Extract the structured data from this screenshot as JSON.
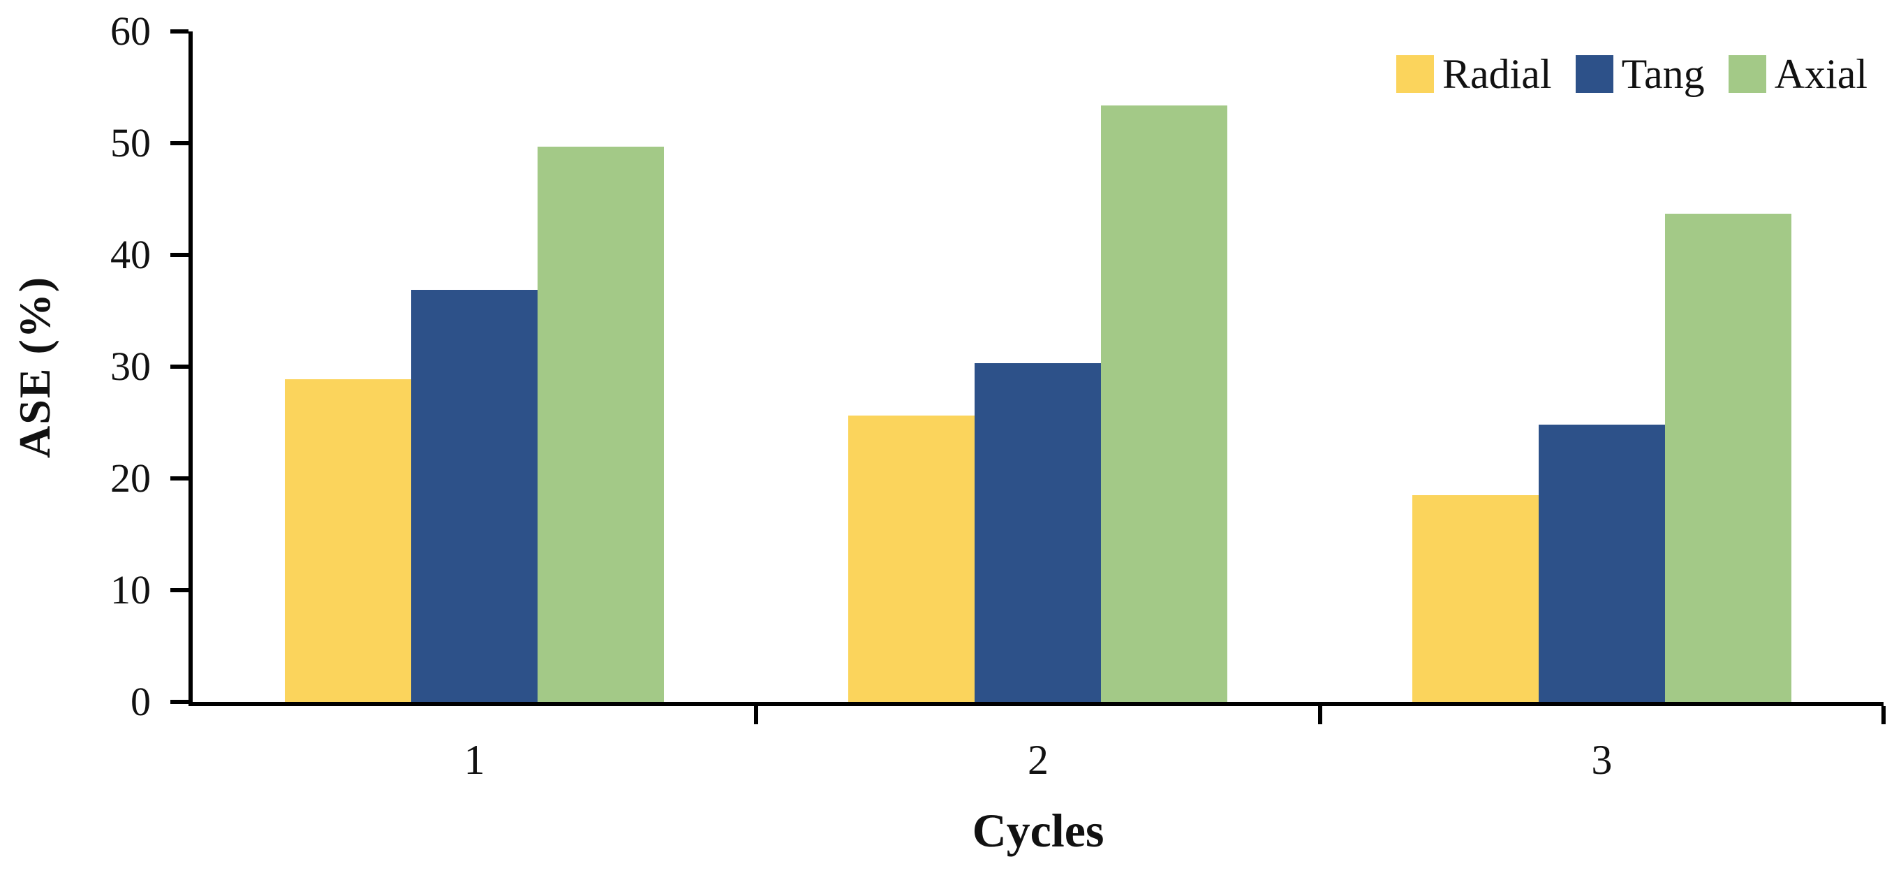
{
  "chart_data": {
    "type": "bar",
    "title": "",
    "xlabel": "Cycles",
    "ylabel": "ASE (%)",
    "categories": [
      "1",
      "2",
      "3"
    ],
    "series": [
      {
        "name": "Radial",
        "color": "#FBD45C",
        "values": [
          28.9,
          25.6,
          18.5
        ]
      },
      {
        "name": "Tang",
        "color": "#2D5189",
        "values": [
          36.9,
          30.3,
          24.8
        ]
      },
      {
        "name": "Axial",
        "color": "#A3C987",
        "values": [
          49.7,
          53.4,
          43.7
        ]
      }
    ],
    "ylim": [
      0,
      60
    ],
    "yticks": [
      0,
      10,
      20,
      30,
      40,
      50,
      60
    ],
    "grid": false,
    "legend_position": "top-right"
  },
  "colors": {
    "axis": "#000000",
    "text": "#111111",
    "background": "#ffffff"
  }
}
